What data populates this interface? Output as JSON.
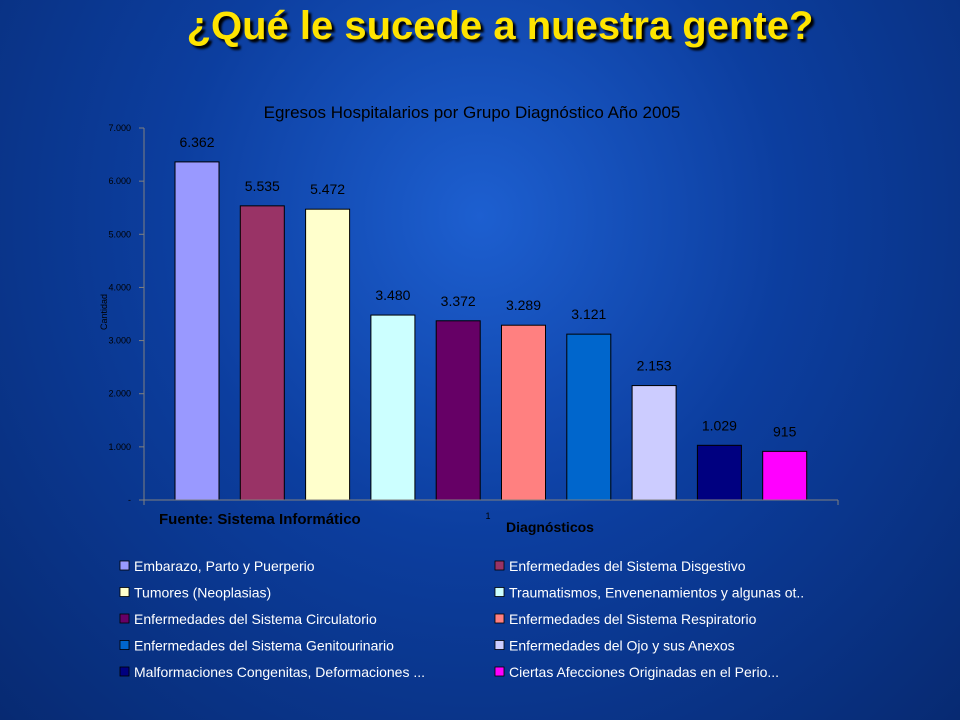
{
  "slide": {
    "title": "¿Qué le sucede a nuestra gente?"
  },
  "source_note": "Fuente: Sistema Informático",
  "chart_data": {
    "type": "bar",
    "title": "Egresos Hospitalarios por Grupo Diagnóstico Año 2005",
    "xlabel": "Diagnósticos",
    "ylabel": "Cantidad",
    "x_tick": "1",
    "ylim": [
      0,
      7000
    ],
    "y_ticks": [
      "-",
      "1.000",
      "2.000",
      "3.000",
      "4.000",
      "5.000",
      "6.000",
      "7.000"
    ],
    "legend_position": "bottom",
    "series": [
      {
        "name": "Embarazo, Parto y Puerperio",
        "value": 6362,
        "label": "6.362",
        "color": "#9999ff"
      },
      {
        "name": "Enfermedades del Sistema Disgestivo",
        "value": 5535,
        "label": "5.535",
        "color": "#993366"
      },
      {
        "name": "Tumores (Neoplasias)",
        "value": 5472,
        "label": "5.472",
        "color": "#ffffcc"
      },
      {
        "name": "Traumatismos, Envenenamientos y algunas ot..",
        "value": 3480,
        "label": "3.480",
        "color": "#ccffff"
      },
      {
        "name": "Enfermedades del Sistema Circulatorio",
        "value": 3372,
        "label": "3.372",
        "color": "#660066"
      },
      {
        "name": "Enfermedades del Sistema Respiratorio",
        "value": 3289,
        "label": "3.289",
        "color": "#ff8080"
      },
      {
        "name": "Enfermedades del Sistema Genitourinario",
        "value": 3121,
        "label": "3.121",
        "color": "#0066cc"
      },
      {
        "name": "Enfermedades del Ojo y sus Anexos",
        "value": 2153,
        "label": "2.153",
        "color": "#ccccff"
      },
      {
        "name": "Malformaciones Congenitas, Deformaciones ...",
        "value": 1029,
        "label": "1.029",
        "color": "#000080"
      },
      {
        "name": "Ciertas Afecciones Originadas en el Perio...",
        "value": 915,
        "label": "915",
        "color": "#ff00ff"
      }
    ]
  }
}
